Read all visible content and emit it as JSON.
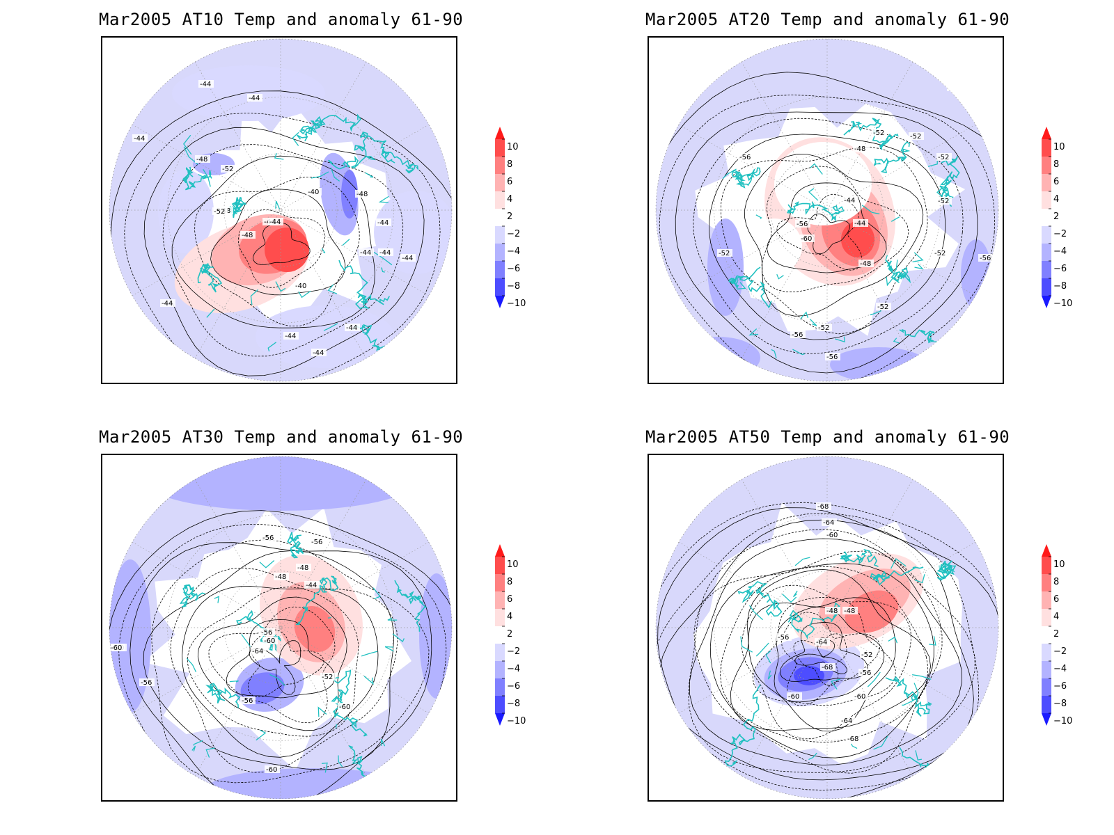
{
  "panels": [
    {
      "title": "Mar2005 AT10 Temp and anomaly 61-90",
      "contour_labels": [
        "-44",
        "-44",
        "-44",
        "-48",
        "-52",
        "-48",
        "-52",
        "-44",
        "-40",
        "-48",
        "-44",
        "-48",
        "-44",
        "-44",
        "-44",
        "-40",
        "-44",
        "-44",
        "-44",
        "-44",
        "-44"
      ]
    },
    {
      "title": "Mar2005 AT20 Temp and anomaly 61-90",
      "contour_labels": [
        "-56",
        "-52",
        "-52",
        "-52",
        "-48",
        "-56",
        "-44",
        "-56",
        "-60",
        "-44",
        "-48",
        "-52",
        "-52",
        "-52",
        "-52",
        "-56",
        "-52",
        "-56",
        "-52",
        "-56"
      ]
    },
    {
      "title": "Mar2005 AT30 Temp and anomaly 61-90",
      "contour_labels": [
        "-56",
        "-56",
        "-48",
        "-48",
        "-44",
        "-56",
        "-60",
        "-64",
        "-60",
        "-52",
        "-56",
        "-60",
        "-56",
        "-60",
        "-60"
      ]
    },
    {
      "title": "Mar2005 AT50 Temp and anomaly 61-90",
      "contour_labels": [
        "-68",
        "-64",
        "-60",
        "-48",
        "-48",
        "-56",
        "-64",
        "-68",
        "-52",
        "-56",
        "-60",
        "-60",
        "-64",
        "-68"
      ]
    }
  ],
  "colorbar": {
    "labels": [
      "10",
      "8",
      "6",
      "4",
      "2",
      "−2",
      "−4",
      "−6",
      "−8",
      "−10"
    ],
    "colors": [
      "#ff1a1a",
      "#ff4d4d",
      "#ff8080",
      "#ffb3b3",
      "#ffe0e0",
      "#ffffff",
      "#d9d9ff",
      "#b3b3ff",
      "#8080ff",
      "#4d4dff",
      "#1a1aff"
    ]
  },
  "styling": {
    "coastline_color": "#20c0c0",
    "warm_anomaly": "#ff3333",
    "cold_anomaly": "#4444ff",
    "light_blue": "#d8d8fb"
  }
}
